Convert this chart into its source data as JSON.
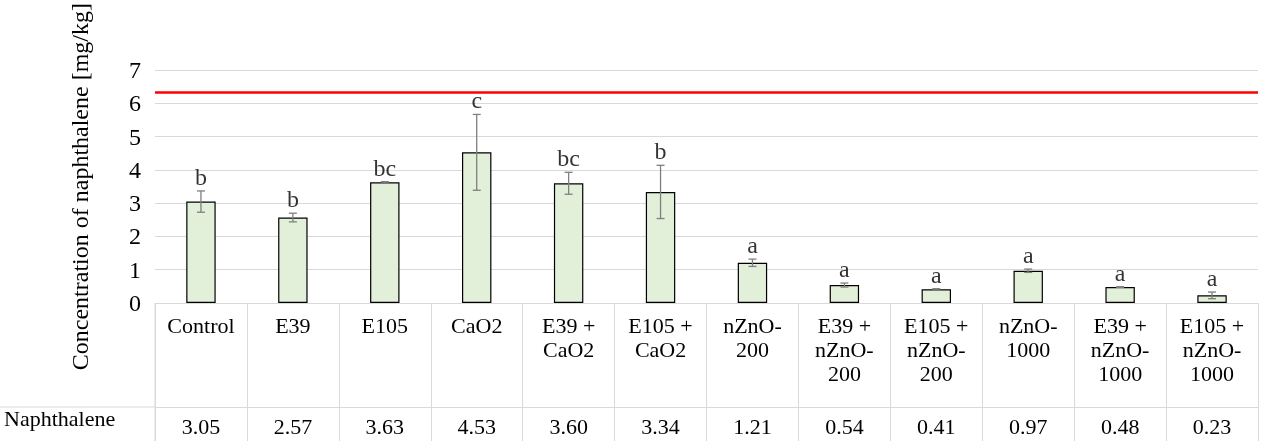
{
  "chart_data": {
    "type": "bar",
    "ylabel": "Concentration of naphthalene [mg/kg]",
    "categories": [
      "Control",
      "E39",
      "E105",
      "CaO2",
      "E39 + CaO2",
      "E105 + CaO2",
      "nZnO-200",
      "E39 + nZnO-200",
      "E105 + nZnO-200",
      "nZnO-1000",
      "E39 + nZnO-1000",
      "E105 + nZnO-1000"
    ],
    "series": [
      {
        "name": "Naphthalene",
        "color": "#e2efd9",
        "values": [
          3.05,
          2.57,
          3.63,
          4.53,
          3.6,
          3.34,
          1.21,
          0.54,
          0.41,
          0.97,
          0.48,
          0.23
        ],
        "value_labels": [
          "3.05",
          "2.57",
          "3.63",
          "4.53",
          "3.60",
          "3.34",
          "1.21",
          "0.54",
          "0.41",
          "0.97",
          "0.48",
          "0.23"
        ],
        "errors": [
          0.32,
          0.13,
          0.02,
          1.14,
          0.33,
          0.8,
          0.11,
          0.06,
          0.02,
          0.05,
          0.01,
          0.1
        ]
      }
    ],
    "ylim": [
      0,
      7
    ],
    "yticks": [
      0,
      1,
      2,
      3,
      4,
      5,
      6,
      7
    ],
    "grid": "y",
    "legend": false,
    "ref_lines": [
      {
        "axis": "y",
        "value": 6.34,
        "color": "#ff0000"
      }
    ],
    "annotations": [
      {
        "text": "b",
        "x": "Control",
        "y": 3.37
      },
      {
        "text": "b",
        "x": "E39",
        "y": 2.7
      },
      {
        "text": "bc",
        "x": "E105",
        "y": 3.65
      },
      {
        "text": "c",
        "x": "CaO2",
        "y": 5.67
      },
      {
        "text": "bc",
        "x": "E39 + CaO2",
        "y": 3.93
      },
      {
        "text": "b",
        "x": "E105 + CaO2",
        "y": 4.14
      },
      {
        "text": "a",
        "x": "nZnO-200",
        "y": 1.32
      },
      {
        "text": "a",
        "x": "E39 + nZnO-200",
        "y": 0.6
      },
      {
        "text": "a",
        "x": "E105 + nZnO-200",
        "y": 0.43
      },
      {
        "text": "a",
        "x": "nZnO-1000",
        "y": 1.02
      },
      {
        "text": "a",
        "x": "E39 + nZnO-1000",
        "y": 0.49
      },
      {
        "text": "a",
        "x": "E105 + nZnO-1000",
        "y": 0.33
      }
    ]
  }
}
